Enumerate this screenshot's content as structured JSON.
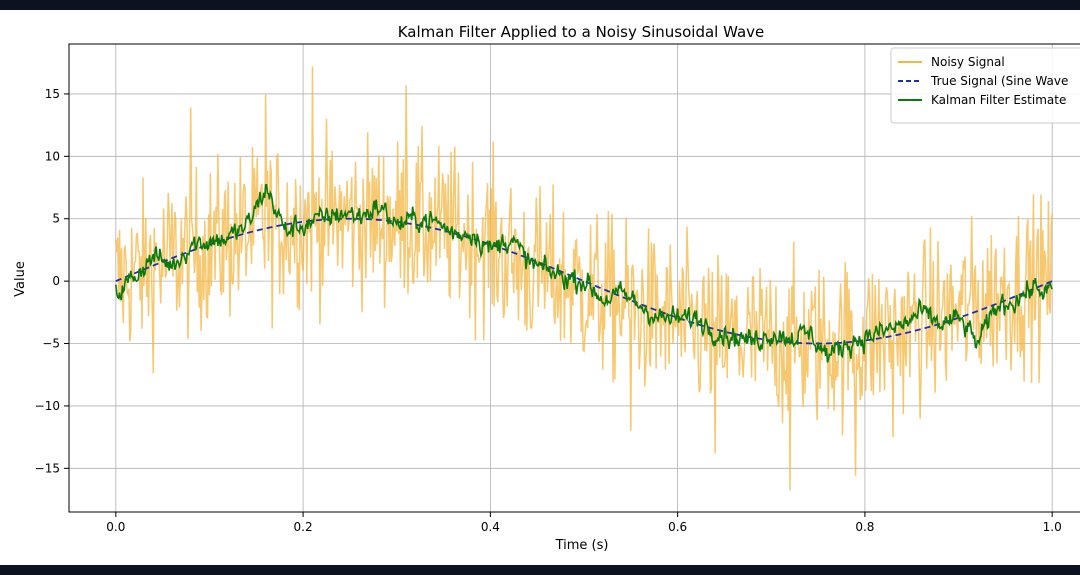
{
  "chart_data": {
    "type": "line",
    "title": "Kalman Filter Applied to a Noisy Sinusoidal Wave",
    "xlabel": "Time (s)",
    "ylabel": "Value",
    "xlim": [
      -0.05,
      1.05
    ],
    "ylim": [
      -18.5,
      19
    ],
    "xticks": [
      0.0,
      0.2,
      0.4,
      0.6,
      0.8,
      1.0
    ],
    "xtick_labels": [
      "0.0",
      "0.2",
      "0.4",
      "0.6",
      "0.8",
      "1.0"
    ],
    "yticks": [
      -15,
      -10,
      -5,
      0,
      5,
      10,
      15
    ],
    "ytick_labels": [
      "−15",
      "−10",
      "−5",
      "0",
      "5",
      "10",
      "15"
    ],
    "grid": true,
    "legend_position": "top-right",
    "series": [
      {
        "name": "Noisy Signal",
        "color": "#f5b642",
        "style": "solid",
        "x": [
          0.0,
          0.02,
          0.04,
          0.06,
          0.08,
          0.1,
          0.12,
          0.14,
          0.16,
          0.18,
          0.2,
          0.22,
          0.24,
          0.26,
          0.28,
          0.3,
          0.32,
          0.34,
          0.36,
          0.38,
          0.4,
          0.42,
          0.44,
          0.46,
          0.48,
          0.5,
          0.52,
          0.54,
          0.56,
          0.58,
          0.6,
          0.62,
          0.64,
          0.66,
          0.68,
          0.7,
          0.72,
          0.74,
          0.76,
          0.78,
          0.8,
          0.82,
          0.84,
          0.86,
          0.88,
          0.9,
          0.92,
          0.94,
          0.96,
          0.98,
          1.0
        ],
        "y_mean": [
          0.0,
          0.6,
          1.2,
          1.8,
          2.4,
          2.9,
          3.4,
          3.9,
          4.3,
          4.6,
          4.8,
          5.0,
          5.0,
          5.0,
          4.9,
          4.8,
          4.5,
          4.3,
          4.0,
          3.5,
          3.0,
          1.8,
          1.0,
          0.5,
          0.0,
          -0.6,
          -1.2,
          -1.8,
          -2.4,
          -2.9,
          -3.4,
          -3.9,
          -4.3,
          -4.6,
          -4.8,
          -5.0,
          -5.0,
          -5.0,
          -4.9,
          -4.8,
          -4.6,
          -4.3,
          -3.9,
          -3.4,
          -2.9,
          -2.4,
          -1.8,
          -1.2,
          -0.6,
          0.0,
          0.0
        ],
        "noise_amplitude": 5.5,
        "peak_values": [
          [
            0.16,
            15.0
          ],
          [
            0.21,
            17.2
          ],
          [
            0.31,
            15.7
          ],
          [
            0.08,
            13.9
          ],
          [
            0.72,
            -16.8
          ],
          [
            0.79,
            -15.6
          ],
          [
            0.83,
            -12.5
          ],
          [
            0.64,
            -13.8
          ],
          [
            0.55,
            -12.0
          ]
        ]
      },
      {
        "name": "True Signal (Sine Wave",
        "color": "#1f2db5",
        "style": "dashed",
        "function": "5*sin(2*pi*t)",
        "x": [
          0.0,
          0.05,
          0.1,
          0.15,
          0.2,
          0.25,
          0.3,
          0.35,
          0.4,
          0.45,
          0.5,
          0.55,
          0.6,
          0.65,
          0.7,
          0.75,
          0.8,
          0.85,
          0.9,
          0.95,
          1.0
        ],
        "y": [
          0.0,
          1.55,
          2.94,
          4.05,
          4.76,
          5.0,
          4.76,
          4.05,
          2.94,
          1.55,
          0.0,
          -1.55,
          -2.94,
          -4.05,
          -4.76,
          -5.0,
          -4.76,
          -4.05,
          -2.94,
          -1.55,
          0.0
        ]
      },
      {
        "name": "Kalman Filter Estimate",
        "color": "#0b7a0b",
        "style": "solid",
        "x": [
          0.0,
          0.02,
          0.04,
          0.06,
          0.08,
          0.1,
          0.12,
          0.14,
          0.16,
          0.18,
          0.2,
          0.22,
          0.24,
          0.26,
          0.28,
          0.3,
          0.32,
          0.34,
          0.36,
          0.38,
          0.4,
          0.42,
          0.44,
          0.46,
          0.48,
          0.5,
          0.52,
          0.54,
          0.56,
          0.58,
          0.6,
          0.62,
          0.64,
          0.66,
          0.68,
          0.7,
          0.72,
          0.74,
          0.76,
          0.78,
          0.8,
          0.82,
          0.84,
          0.86,
          0.88,
          0.9,
          0.92,
          0.94,
          0.96,
          0.98,
          1.0
        ],
        "y": [
          -1.0,
          0.5,
          2.0,
          1.2,
          3.0,
          3.2,
          3.5,
          4.5,
          7.5,
          4.0,
          4.5,
          5.0,
          5.5,
          5.2,
          6.0,
          4.5,
          5.0,
          4.8,
          3.8,
          3.9,
          2.5,
          3.5,
          1.5,
          0.8,
          0.3,
          0.0,
          -1.5,
          -1.0,
          -2.0,
          -3.0,
          -3.0,
          -3.0,
          -4.0,
          -4.5,
          -4.8,
          -4.2,
          -4.5,
          -4.2,
          -6.0,
          -5.0,
          -4.5,
          -4.0,
          -3.5,
          -2.5,
          -3.5,
          -3.0,
          -5.0,
          -2.0,
          -1.5,
          -0.5,
          -1.0
        ],
        "noise_amplitude": 1.5
      }
    ]
  }
}
